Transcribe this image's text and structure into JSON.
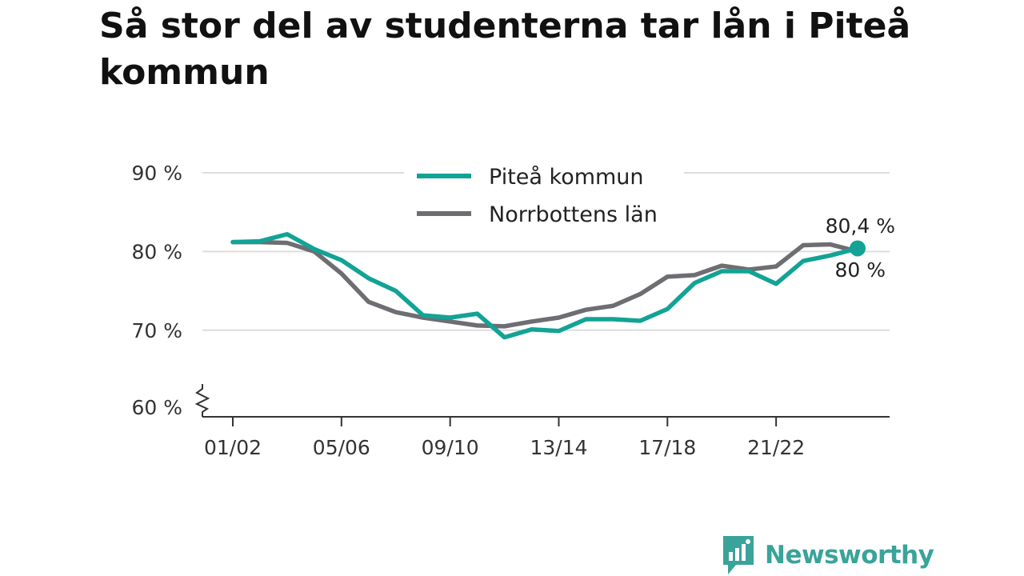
{
  "title": "Så stor del av studenterna tar lån i Piteå kommun",
  "brand": "Newsworthy",
  "colors": {
    "pitea": "#12a396",
    "norrbotten": "#6e6d72",
    "grid": "#dddddd",
    "axis": "#333333",
    "brand": "#3aa39a"
  },
  "chart_data": {
    "type": "line",
    "categories": [
      "01/02",
      "02/03",
      "03/04",
      "04/05",
      "05/06",
      "06/07",
      "07/08",
      "08/09",
      "09/10",
      "10/11",
      "11/12",
      "12/13",
      "13/14",
      "14/15",
      "15/16",
      "16/17",
      "17/18",
      "18/19",
      "19/20",
      "20/21",
      "21/22",
      "22/23",
      "23/24",
      "24/25"
    ],
    "x_tick_labels": [
      "01/02",
      "05/06",
      "09/10",
      "13/14",
      "17/18",
      "21/22"
    ],
    "y_tick_labels": [
      "90 %",
      "80 %",
      "70 %",
      "60 %"
    ],
    "y_ticks": [
      90,
      80,
      70,
      60
    ],
    "ylim": [
      59,
      90
    ],
    "axis_break": true,
    "series": [
      {
        "name": "Piteå kommun",
        "color": "#12a396",
        "values": [
          81.2,
          81.3,
          82.2,
          80.3,
          78.9,
          76.6,
          75.0,
          71.9,
          71.6,
          72.1,
          69.1,
          70.1,
          69.9,
          71.4,
          71.4,
          71.2,
          72.7,
          76.0,
          77.5,
          77.5,
          75.9,
          78.8,
          79.5,
          80.4
        ]
      },
      {
        "name": "Norrbottens län",
        "color": "#6e6d72",
        "values": [
          81.2,
          81.2,
          81.1,
          80.0,
          77.2,
          73.6,
          72.3,
          71.6,
          71.1,
          70.6,
          70.5,
          71.1,
          71.6,
          72.6,
          73.1,
          74.6,
          76.8,
          77.0,
          78.2,
          77.7,
          78.1,
          80.8,
          80.9,
          80.0
        ]
      }
    ],
    "end_labels": [
      "80,4 %",
      "80 %"
    ],
    "legend_position": "top-center",
    "grid": true
  }
}
